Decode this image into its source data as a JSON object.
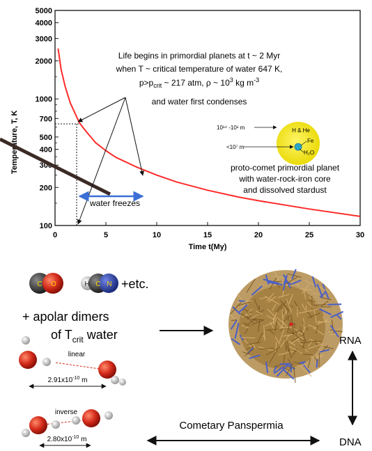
{
  "chart_data": {
    "type": "line",
    "xlabel": "Time t(My)",
    "ylabel": "Temperature, T, K",
    "xlim": [
      0,
      30
    ],
    "ylim": [
      100,
      5000
    ],
    "y_scale": "log",
    "x_ticks": [
      "0",
      "5",
      "10",
      "15",
      "20",
      "25",
      "30"
    ],
    "y_ticks": [
      "100",
      "200",
      "300",
      "400",
      "500",
      "700",
      "1000",
      "2000",
      "3000",
      "4000",
      "5000"
    ],
    "series": [
      {
        "color": "#ff2a2a",
        "x": [
          0.3,
          0.6,
          1,
          1.5,
          2,
          2.4,
          3,
          4,
          5,
          6,
          8,
          10,
          12,
          15,
          18,
          20,
          25,
          30
        ],
        "y": [
          2500,
          1700,
          1250,
          930,
          760,
          647,
          560,
          450,
          390,
          345,
          290,
          250,
          220,
          190,
          168,
          157,
          135,
          118
        ]
      }
    ],
    "annotations": {
      "life_line1": "Life begins in primordial planets at t ~ 2 Myr",
      "life_line2": "when T ~ critical temperature of water 647 K,",
      "life_line3_a": "p>p",
      "life_line3_sub": "crit",
      "life_line3_b": " ~ 217 atm, ρ ~ 10",
      "life_line3_sup": "3",
      "life_line3_c": " kg m",
      "life_line3_sup2": "-3",
      "life_line4": "and water first condenses",
      "water_freezes": "water freezes",
      "planet_line1": "proto-comet primordial planet",
      "planet_line2": "with water-rock-iron core",
      "planet_line3": "and dissolved stardust",
      "planet_size_outer": "10¹⁴ -10¹ m",
      "planet_size_inner": "<10⁷ m",
      "planet_hhe": "H & He",
      "planet_fe": "Fe",
      "planet_h2o": "H₂O"
    }
  },
  "lower": {
    "molecules": {
      "co_c": "C",
      "co_o": "O",
      "hcn_h": "H",
      "hcn_c": "C",
      "hcn_n": "N",
      "etc": "+etc."
    },
    "dimers_line1": "+ apolar dimers",
    "dimers_line2_a": "of T",
    "dimers_line2_sub": "crit",
    "dimers_line2_b": " water",
    "linear_label": "linear",
    "linear_dist": "2.91x10",
    "linear_exp": "-10",
    "linear_unit": " m",
    "inverse_label": "inverse",
    "inverse_dist": "2.80x10",
    "inverse_exp": "-10",
    "inverse_unit": " m",
    "rna": "RNA",
    "dna": "DNA",
    "panspermia": "Cometary Panspermia"
  },
  "colors": {
    "curve": "#ff2a2a",
    "brown_line": "#3b2a26",
    "freeze_arrow": "#3b6fd6",
    "planet_yellow": "#f2e600",
    "planet_core": "#2aa6c9",
    "oxygen_red": "#d22a1a",
    "carbon_gray": "#4a4a4a",
    "nitrogen_blue": "#2b3f9e",
    "rna_tan": "#b08a4a",
    "rna_blue": "#4a5fc9"
  }
}
